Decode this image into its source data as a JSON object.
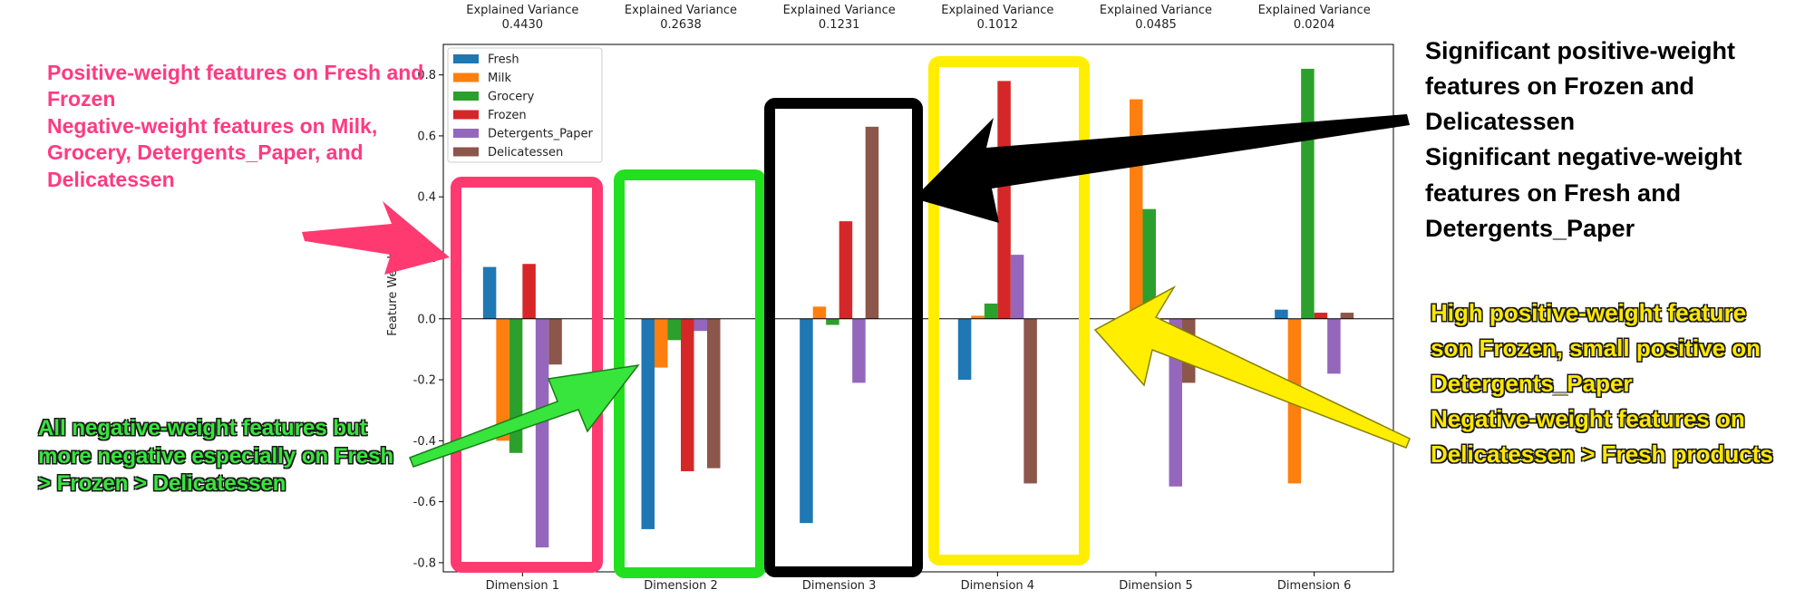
{
  "chart_data": {
    "type": "bar",
    "categories": [
      "Dimension 1",
      "Dimension 2",
      "Dimension 3",
      "Dimension 4",
      "Dimension 5",
      "Dimension 6"
    ],
    "explained_variance_label": "Explained Variance",
    "explained_variance": [
      "0.4430",
      "0.2638",
      "0.1231",
      "0.1012",
      "0.0485",
      "0.0204"
    ],
    "series": [
      {
        "name": "Fresh",
        "color": "#1f77b4",
        "values": [
          0.17,
          -0.69,
          -0.67,
          -0.2,
          0.0,
          0.03
        ]
      },
      {
        "name": "Milk",
        "color": "#ff7f0e",
        "values": [
          -0.4,
          -0.16,
          0.04,
          0.01,
          0.72,
          -0.54
        ]
      },
      {
        "name": "Grocery",
        "color": "#2ca02c",
        "values": [
          -0.44,
          -0.07,
          -0.02,
          0.05,
          0.36,
          0.82
        ]
      },
      {
        "name": "Frozen",
        "color": "#d62728",
        "values": [
          0.18,
          -0.5,
          0.32,
          0.78,
          0.0,
          0.02
        ]
      },
      {
        "name": "Detergents_Paper",
        "color": "#9467bd",
        "values": [
          -0.75,
          -0.04,
          -0.21,
          0.21,
          -0.55,
          -0.18
        ]
      },
      {
        "name": "Delicatessen",
        "color": "#8c564b",
        "values": [
          -0.15,
          -0.49,
          0.63,
          -0.54,
          -0.21,
          0.02
        ]
      }
    ],
    "ylabel": "Feature Weights",
    "xlabel": "",
    "ylim": [
      -0.83,
      0.9
    ],
    "yticks": [
      -0.8,
      -0.6,
      -0.4,
      -0.2,
      0.0,
      0.2,
      0.4,
      0.6,
      0.8
    ],
    "ytick_labels": [
      "-0.8",
      "-0.6",
      "-0.4",
      "-0.2",
      "0.0",
      "0.2",
      "0.4",
      "0.6",
      "0.8"
    ],
    "legend_position": "top-left",
    "grid": false
  },
  "annotations": {
    "pink": "Positive-weight features on Fresh and Frozen\nNegative-weight features on Milk, Grocery, Detergents_Paper, and Delicatessen",
    "green": "All negative-weight features but more negative especially on Fresh > Frozen > Delicatessen",
    "black": "Significant positive-weight features on Frozen and Delicatessen\nSignificant negative-weight features on Fresh and Detergents_Paper",
    "yellow": "High positive-weight feature son Frozen, small positive on Detergents_Paper\nNegative-weight features on Delicatessen > Fresh products"
  },
  "highlight_colors": {
    "dimension_1": "#ff3a70",
    "dimension_2": "#22e01f",
    "dimension_3": "#000000",
    "dimension_4": "#ffee00"
  }
}
